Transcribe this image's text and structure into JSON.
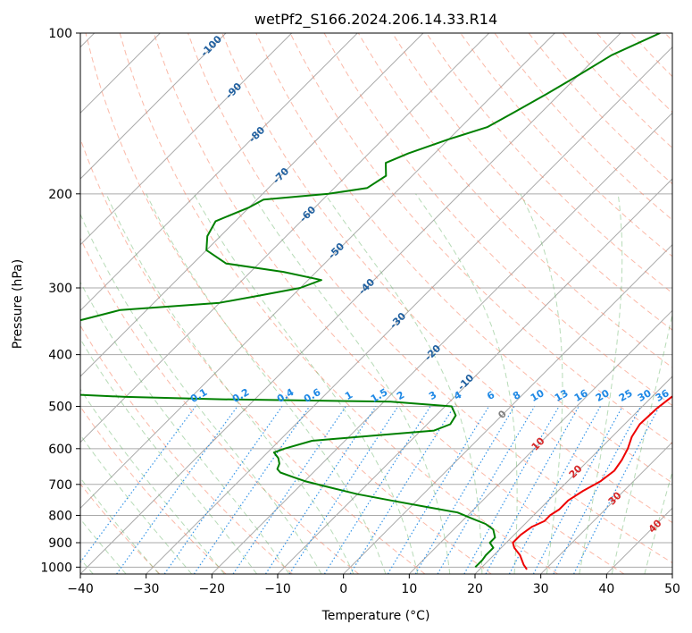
{
  "chart_data": {
    "type": "line",
    "title": "wetPf2_S166.2024.206.14.33.R14",
    "xlabel": "Temperature (°C)",
    "ylabel": "Pressure (hPa)",
    "xlim": [
      -40,
      50
    ],
    "ylim": [
      1030,
      100
    ],
    "y_scale": "log",
    "grid": true,
    "x_ticks": [
      -40,
      -30,
      -20,
      -10,
      0,
      10,
      20,
      30,
      40,
      50
    ],
    "y_ticks": [
      100,
      200,
      300,
      400,
      500,
      600,
      700,
      800,
      900,
      1000
    ],
    "skew_t": true,
    "series": [
      {
        "color": "#ee0000",
        "points": [
          [
            27.2,
            1010
          ],
          [
            26,
            990
          ],
          [
            24,
            950
          ],
          [
            22,
            920
          ],
          [
            21,
            900
          ],
          [
            21,
            870
          ],
          [
            21.5,
            840
          ],
          [
            22.5,
            820
          ],
          [
            22.5,
            800
          ],
          [
            23,
            780
          ],
          [
            23,
            750
          ],
          [
            23.8,
            720
          ],
          [
            25,
            690
          ],
          [
            25.5,
            660
          ],
          [
            25,
            630
          ],
          [
            24.2,
            600
          ],
          [
            23,
            570
          ],
          [
            22.3,
            540
          ],
          [
            22.5,
            505
          ],
          [
            23,
            480
          ],
          [
            25,
            460
          ],
          [
            25.5,
            440
          ],
          [
            24,
            410
          ],
          [
            23,
            390
          ],
          [
            22,
            370
          ],
          [
            19,
            340
          ],
          [
            16,
            310
          ],
          [
            13.5,
            285
          ],
          [
            11,
            260
          ],
          [
            9,
            240
          ],
          [
            6.8,
            215
          ],
          [
            4,
            185
          ],
          [
            2.5,
            165
          ],
          [
            0,
            148
          ],
          [
            -1.8,
            132
          ],
          [
            -2.5,
            118
          ],
          [
            -2.5,
            110
          ],
          [
            -3.5,
            100
          ]
        ]
      },
      {
        "color": "#008000",
        "points": [
          [
            19,
            1000
          ],
          [
            19,
            970
          ],
          [
            18.8,
            950
          ],
          [
            18.8,
            920
          ],
          [
            17.5,
            900
          ],
          [
            17.5,
            880
          ],
          [
            16,
            850
          ],
          [
            14,
            830
          ],
          [
            11,
            810
          ],
          [
            8,
            790
          ],
          [
            2,
            770
          ],
          [
            -4,
            750
          ],
          [
            -10,
            730
          ],
          [
            -15,
            710
          ],
          [
            -20,
            690
          ],
          [
            -22,
            680
          ],
          [
            -25,
            665
          ],
          [
            -26,
            655
          ],
          [
            -26.5,
            640
          ],
          [
            -27.5,
            625
          ],
          [
            -29,
            610
          ],
          [
            -28,
            600
          ],
          [
            -25,
            580
          ],
          [
            -15,
            565
          ],
          [
            -8,
            555
          ],
          [
            -6.5,
            540
          ],
          [
            -7,
            520
          ],
          [
            -9,
            500
          ],
          [
            -19,
            490
          ],
          [
            -45,
            485
          ],
          [
            -60,
            480
          ],
          [
            -77,
            470
          ],
          [
            -79,
            460
          ],
          [
            -87,
            450
          ],
          [
            -90,
            430
          ],
          [
            -92,
            380
          ],
          [
            -85,
            360
          ],
          [
            -80,
            350
          ],
          [
            -74,
            330
          ],
          [
            -60,
            320
          ],
          [
            -55,
            310
          ],
          [
            -50,
            300
          ],
          [
            -48,
            290
          ],
          [
            -55,
            280
          ],
          [
            -65,
            270
          ],
          [
            -70,
            255
          ],
          [
            -72,
            240
          ],
          [
            -73,
            225
          ],
          [
            -70,
            212
          ],
          [
            -69,
            205
          ],
          [
            -60,
            200
          ],
          [
            -55,
            195
          ],
          [
            -54,
            185
          ],
          [
            -56,
            175
          ],
          [
            -54,
            168
          ],
          [
            -50,
            158
          ],
          [
            -46,
            150
          ],
          [
            -44,
            140
          ],
          [
            -42,
            130
          ],
          [
            -40,
            120
          ],
          [
            -38,
            110
          ],
          [
            -34,
            100
          ]
        ]
      }
    ],
    "dry_adiabat_labels": [
      "-100",
      "-90",
      "-80",
      "-70",
      "-60",
      "-50",
      "-40",
      "-30",
      "-20",
      "-10"
    ],
    "mixing_ratio_labels": [
      "0.1",
      "0.2",
      "0.4",
      "0.6",
      "1",
      "1.5",
      "2",
      "3",
      "4",
      "6",
      "8",
      "10",
      "13",
      "16",
      "20",
      "25",
      "30",
      "36"
    ],
    "moist_adiabat_labels": [
      "0",
      "10",
      "20",
      "30",
      "40"
    ],
    "colors": {
      "isotherm": "#aaaaaa",
      "dry_adiabat": "#f88060",
      "moist_adiabat": "#60b060",
      "mixing_ratio": "#1e88e5",
      "dry_label": "#2060a0",
      "moist_label": "#d62728",
      "zero_label": "#808080"
    }
  }
}
